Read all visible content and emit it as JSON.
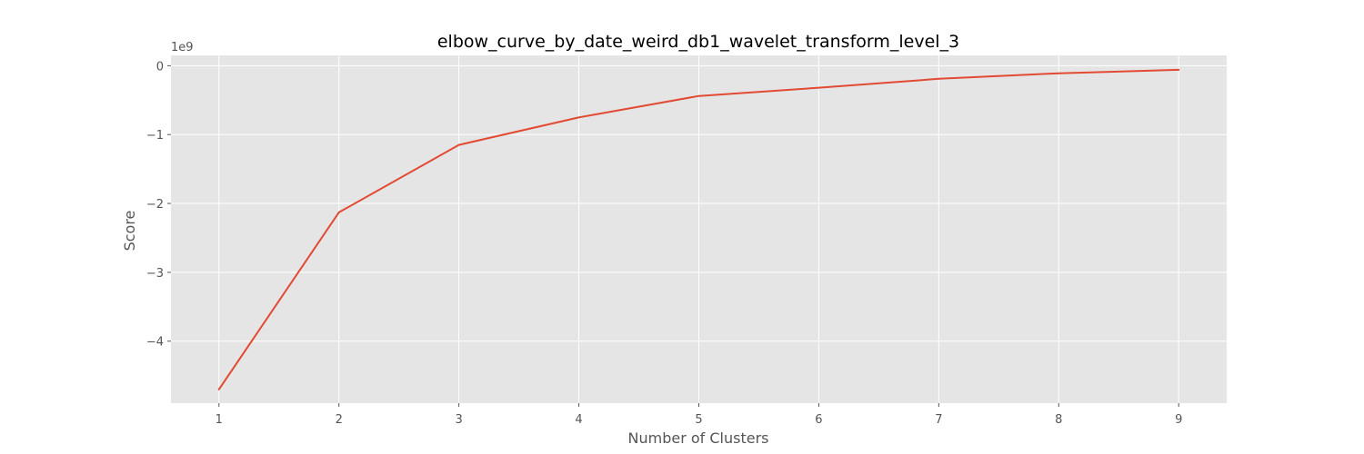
{
  "chart_data": {
    "type": "line",
    "title": "elbow_curve_by_date_weird_db1_wavelet_transform_level_3",
    "xlabel": "Number of Clusters",
    "ylabel": "Score",
    "y_offset_label": "1e9",
    "x": [
      1,
      2,
      3,
      4,
      5,
      6,
      7,
      8,
      9
    ],
    "series": [
      {
        "values": [
          -4.7,
          -2.13,
          -1.15,
          -0.75,
          -0.44,
          -0.32,
          -0.19,
          -0.11,
          -0.06
        ]
      }
    ],
    "xlim": [
      0.6,
      9.4
    ],
    "ylim": [
      -4.9,
      0.15
    ],
    "xticks": [
      1,
      2,
      3,
      4,
      5,
      6,
      7,
      8,
      9
    ],
    "xtick_labels": [
      "1",
      "2",
      "3",
      "4",
      "5",
      "6",
      "7",
      "8",
      "9"
    ],
    "yticks": [
      0,
      -1,
      -2,
      -3,
      -4
    ],
    "ytick_labels": [
      "0",
      "−1",
      "−2",
      "−3",
      "−4"
    ],
    "grid": true,
    "style": "ggplot",
    "colors": {
      "line": "#E24A33",
      "plot_background": "#E5E5E5",
      "grid": "#FFFFFF",
      "figure_background": "#FFFFFF",
      "tick_text": "#555555",
      "title_text": "#000000"
    }
  }
}
